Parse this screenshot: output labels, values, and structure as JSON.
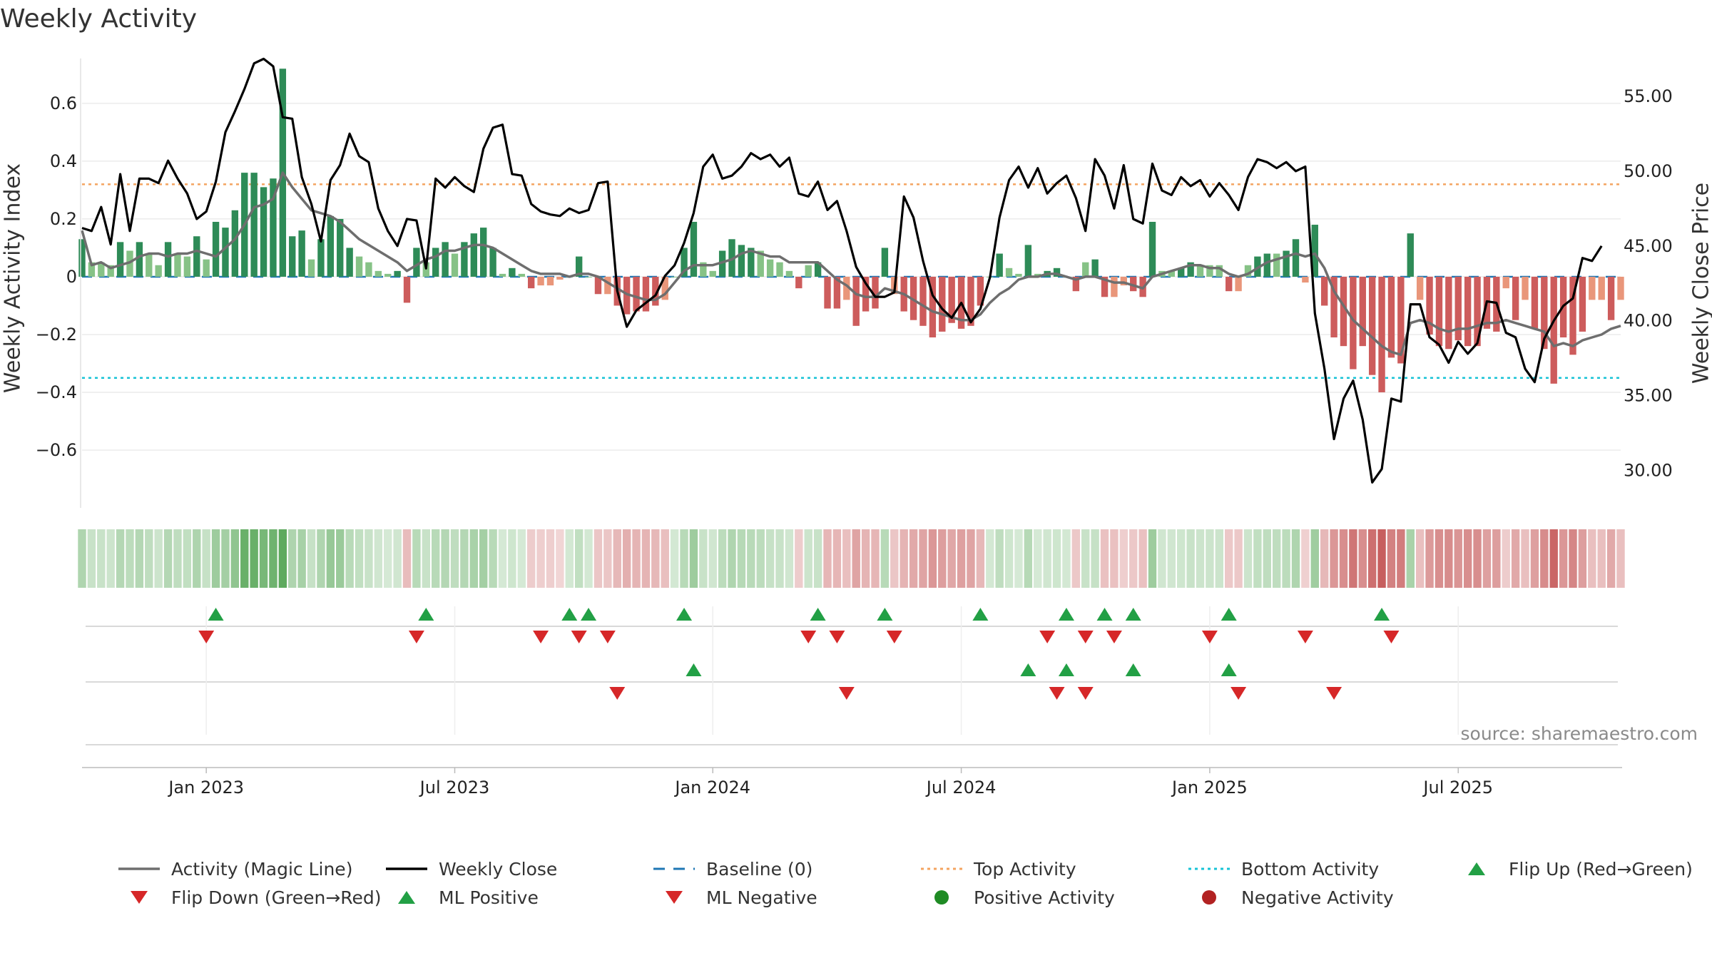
{
  "chart_data": {
    "type": "bar",
    "title": "Weekly Activity",
    "ylabel": "Weekly Activity Index",
    "y2label": "Weekly Close Price",
    "source_text": "source: sharemaestro.com",
    "ylim": [
      -0.8,
      0.78
    ],
    "y2lim": [
      27.5,
      58.0
    ],
    "yticks": [
      -0.6,
      -0.4,
      -0.2,
      0,
      0.2,
      0.4,
      0.6
    ],
    "ytick_labels": [
      "−0.6",
      "−0.4",
      "−0.2",
      "0",
      "0.2",
      "0.4",
      "0.6"
    ],
    "y2ticks": [
      30,
      35,
      40,
      45,
      50,
      55
    ],
    "y2tick_labels": [
      "30.00",
      "35.00",
      "40.00",
      "45.00",
      "50.00",
      "55.00"
    ],
    "x_start_week": "2022-10-03",
    "xticks": [
      {
        "week": 13,
        "label": "Jan 2023"
      },
      {
        "week": 39,
        "label": "Jul 2023"
      },
      {
        "week": 66,
        "label": "Jan 2024"
      },
      {
        "week": 92,
        "label": "Jul 2024"
      },
      {
        "week": 118,
        "label": "Jan 2025"
      },
      {
        "week": 144,
        "label": "Jul 2025"
      }
    ],
    "top_activity": 0.32,
    "bottom_activity": -0.35,
    "baseline": 0,
    "activity": [
      0.13,
      0.05,
      0.05,
      0.04,
      0.12,
      0.09,
      0.12,
      0.08,
      0.04,
      0.12,
      0.08,
      0.07,
      0.14,
      0.06,
      0.19,
      0.17,
      0.23,
      0.36,
      0.36,
      0.31,
      0.34,
      0.72,
      0.14,
      0.16,
      0.06,
      0.13,
      0.21,
      0.2,
      0.1,
      0.07,
      0.05,
      0.02,
      0.01,
      0.02,
      -0.09,
      0.1,
      0.05,
      0.1,
      0.12,
      0.08,
      0.12,
      0.15,
      0.17,
      0.1,
      0.01,
      0.03,
      0.01,
      -0.04,
      -0.03,
      -0.03,
      -0.01,
      0.0,
      0.07,
      0.0,
      -0.06,
      -0.06,
      -0.1,
      -0.13,
      -0.12,
      -0.12,
      -0.1,
      -0.08,
      0.0,
      0.1,
      0.19,
      0.05,
      0.02,
      0.09,
      0.13,
      0.11,
      0.1,
      0.09,
      0.06,
      0.05,
      0.02,
      -0.04,
      0.04,
      0.05,
      -0.11,
      -0.11,
      -0.08,
      -0.17,
      -0.12,
      -0.11,
      0.1,
      -0.06,
      -0.12,
      -0.15,
      -0.17,
      -0.21,
      -0.19,
      -0.16,
      -0.18,
      -0.17,
      -0.1,
      0.0,
      0.08,
      0.03,
      0.01,
      0.11,
      0.01,
      0.02,
      0.03,
      0.0,
      -0.05,
      0.05,
      0.06,
      -0.07,
      -0.07,
      -0.03,
      -0.05,
      -0.07,
      0.19,
      0.02,
      0.02,
      0.03,
      0.05,
      0.04,
      0.04,
      0.04,
      -0.05,
      -0.05,
      0.04,
      0.07,
      0.08,
      0.08,
      0.09,
      0.13,
      -0.02,
      0.18,
      -0.1,
      -0.21,
      -0.24,
      -0.32,
      -0.24,
      -0.34,
      -0.4,
      -0.28,
      -0.3,
      0.15,
      -0.08,
      -0.2,
      -0.24,
      -0.25,
      -0.22,
      -0.24,
      -0.24,
      -0.18,
      -0.19,
      -0.04,
      -0.15,
      -0.08,
      -0.18,
      -0.25,
      -0.37,
      -0.21,
      -0.27,
      -0.19,
      -0.08,
      -0.08,
      -0.15,
      -0.08
    ],
    "magic_line": [
      0.16,
      0.04,
      0.05,
      0.03,
      0.04,
      0.05,
      0.07,
      0.08,
      0.08,
      0.07,
      0.08,
      0.08,
      0.09,
      0.08,
      0.07,
      0.1,
      0.13,
      0.18,
      0.24,
      0.25,
      0.27,
      0.36,
      0.31,
      0.27,
      0.23,
      0.22,
      0.21,
      0.19,
      0.16,
      0.13,
      0.11,
      0.09,
      0.07,
      0.05,
      0.02,
      0.04,
      0.06,
      0.07,
      0.09,
      0.09,
      0.1,
      0.11,
      0.11,
      0.1,
      0.08,
      0.06,
      0.04,
      0.02,
      0.01,
      0.01,
      0.01,
      0.0,
      0.01,
      0.01,
      0.0,
      -0.02,
      -0.04,
      -0.06,
      -0.07,
      -0.08,
      -0.08,
      -0.06,
      -0.02,
      0.02,
      0.04,
      0.04,
      0.04,
      0.05,
      0.06,
      0.08,
      0.09,
      0.08,
      0.07,
      0.07,
      0.05,
      0.05,
      0.05,
      0.05,
      0.02,
      -0.01,
      -0.03,
      -0.06,
      -0.07,
      -0.07,
      -0.04,
      -0.05,
      -0.06,
      -0.08,
      -0.1,
      -0.12,
      -0.13,
      -0.14,
      -0.15,
      -0.15,
      -0.13,
      -0.09,
      -0.06,
      -0.04,
      -0.01,
      0.0,
      0.0,
      0.01,
      0.01,
      0.0,
      -0.01,
      0.0,
      0.0,
      -0.01,
      -0.02,
      -0.02,
      -0.03,
      -0.04,
      0.0,
      0.01,
      0.02,
      0.03,
      0.04,
      0.04,
      0.03,
      0.03,
      0.01,
      0.0,
      0.01,
      0.03,
      0.05,
      0.06,
      0.07,
      0.08,
      0.07,
      0.08,
      0.03,
      -0.05,
      -0.1,
      -0.15,
      -0.18,
      -0.21,
      -0.24,
      -0.26,
      -0.27,
      -0.16,
      -0.15,
      -0.16,
      -0.18,
      -0.19,
      -0.18,
      -0.18,
      -0.17,
      -0.16,
      -0.16,
      -0.15,
      -0.16,
      -0.17,
      -0.18,
      -0.19,
      -0.24,
      -0.23,
      -0.24,
      -0.22,
      -0.21,
      -0.2,
      -0.18,
      -0.17
    ],
    "weekly_close": [
      46.2,
      46.0,
      47.6,
      45.1,
      49.8,
      46.0,
      49.5,
      49.5,
      49.2,
      50.7,
      49.5,
      48.5,
      46.8,
      47.3,
      49.3,
      52.6,
      54.0,
      55.5,
      57.2,
      57.5,
      57.0,
      53.6,
      53.5,
      49.6,
      47.8,
      45.3,
      49.4,
      50.4,
      52.5,
      51.0,
      50.6,
      47.5,
      46.0,
      45.0,
      46.8,
      46.7,
      43.5,
      49.5,
      48.9,
      49.6,
      49.0,
      48.6,
      51.5,
      52.9,
      53.1,
      49.8,
      49.7,
      47.8,
      47.3,
      47.1,
      47.0,
      47.5,
      47.2,
      47.4,
      49.2,
      49.3,
      42.0,
      39.6,
      40.7,
      41.2,
      41.7,
      43.0,
      43.7,
      45.2,
      47.2,
      50.3,
      51.1,
      49.5,
      49.7,
      50.3,
      51.2,
      50.8,
      51.1,
      50.3,
      50.9,
      48.5,
      48.3,
      49.3,
      47.4,
      48.0,
      46.0,
      43.6,
      42.5,
      41.6,
      41.6,
      41.9,
      48.3,
      46.9,
      44.0,
      41.7,
      40.8,
      40.2,
      41.2,
      39.9,
      40.8,
      42.9,
      46.9,
      49.4,
      50.3,
      48.9,
      50.2,
      48.5,
      49.2,
      49.7,
      48.2,
      46.0,
      50.8,
      49.7,
      47.5,
      50.4,
      46.8,
      46.5,
      50.5,
      48.7,
      48.4,
      49.6,
      49.0,
      49.4,
      48.3,
      49.2,
      48.4,
      47.4,
      49.6,
      50.8,
      50.6,
      50.2,
      50.6,
      50.0,
      50.3,
      40.5,
      36.8,
      32.1,
      34.8,
      36.0,
      33.4,
      29.2,
      30.1,
      34.8,
      34.6,
      41.1,
      41.1,
      38.9,
      38.4,
      37.2,
      38.6,
      37.8,
      38.5,
      41.3,
      41.2,
      39.2,
      38.9,
      36.8,
      35.9,
      38.8,
      40.0,
      41.0,
      41.5,
      44.2,
      44.0,
      45.0
    ],
    "flip_up": [
      14,
      36,
      51,
      53,
      63,
      77,
      84,
      94,
      103,
      107,
      110,
      120,
      136
    ],
    "flip_down": [
      13,
      35,
      48,
      52,
      55,
      76,
      79,
      85,
      101,
      105,
      108,
      118,
      128,
      137
    ],
    "ml_positive": [
      64,
      99,
      103,
      110,
      120
    ],
    "ml_negative": [
      56,
      80,
      102,
      105,
      121,
      131
    ],
    "legend": [
      {
        "label": "Activity (Magic Line)",
        "marker": "line-gray"
      },
      {
        "label": "Weekly Close",
        "marker": "line-black"
      },
      {
        "label": "Baseline (0)",
        "marker": "dash-blue"
      },
      {
        "label": "Top Activity",
        "marker": "dot-orange"
      },
      {
        "label": "Bottom Activity",
        "marker": "dot-cyan"
      },
      {
        "label": "Flip Up (Red→Green)",
        "marker": "tri-up-green"
      },
      {
        "label": "Flip Down (Green→Red)",
        "marker": "tri-down-red"
      },
      {
        "label": "ML Positive",
        "marker": "tri-up-green"
      },
      {
        "label": "ML Negative",
        "marker": "tri-down-red"
      },
      {
        "label": "Positive Activity",
        "marker": "circle-green"
      },
      {
        "label": "Negative Activity",
        "marker": "circle-red"
      }
    ],
    "colors": {
      "pos_strong": "#2e8b57",
      "pos_light": "#86c286",
      "neg_strong": "#cd5c5c",
      "neg_light": "#e9967a",
      "magic_line": "#6e6e6e",
      "close": "#000000",
      "baseline": "#1f77b4",
      "top": "#f4a460",
      "bottom": "#17c3d6",
      "marker_green": "#22a045",
      "marker_red": "#d62728",
      "circle_green": "#1f8b24",
      "circle_red": "#b22222"
    }
  }
}
